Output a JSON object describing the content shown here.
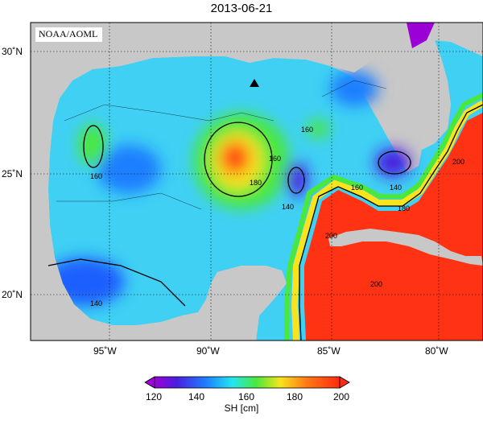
{
  "title": "2013-06-21",
  "credit": "NOAA/AOML",
  "units_label": "SH [cm]",
  "lat_labels": [
    "30˚N",
    "25˚N",
    "20˚N"
  ],
  "lon_labels": [
    "95˚W",
    "90˚W",
    "85˚W",
    "80˚W"
  ],
  "colorbar": {
    "ticks": [
      "120",
      "140",
      "160",
      "180",
      "200"
    ],
    "colors": [
      "#9b00d6",
      "#4a1fe0",
      "#1f5fff",
      "#1fa5ff",
      "#23e6f0",
      "#3cf0b0",
      "#4ae83c",
      "#b8f020",
      "#f8e31c",
      "#ff9a19",
      "#ff4a14",
      "#ff2a10"
    ]
  },
  "contour_labels": [
    "160",
    "160",
    "180",
    "160",
    "140",
    "160",
    "140",
    "180",
    "200",
    "200",
    "140",
    "200"
  ],
  "marker": "triangle"
}
